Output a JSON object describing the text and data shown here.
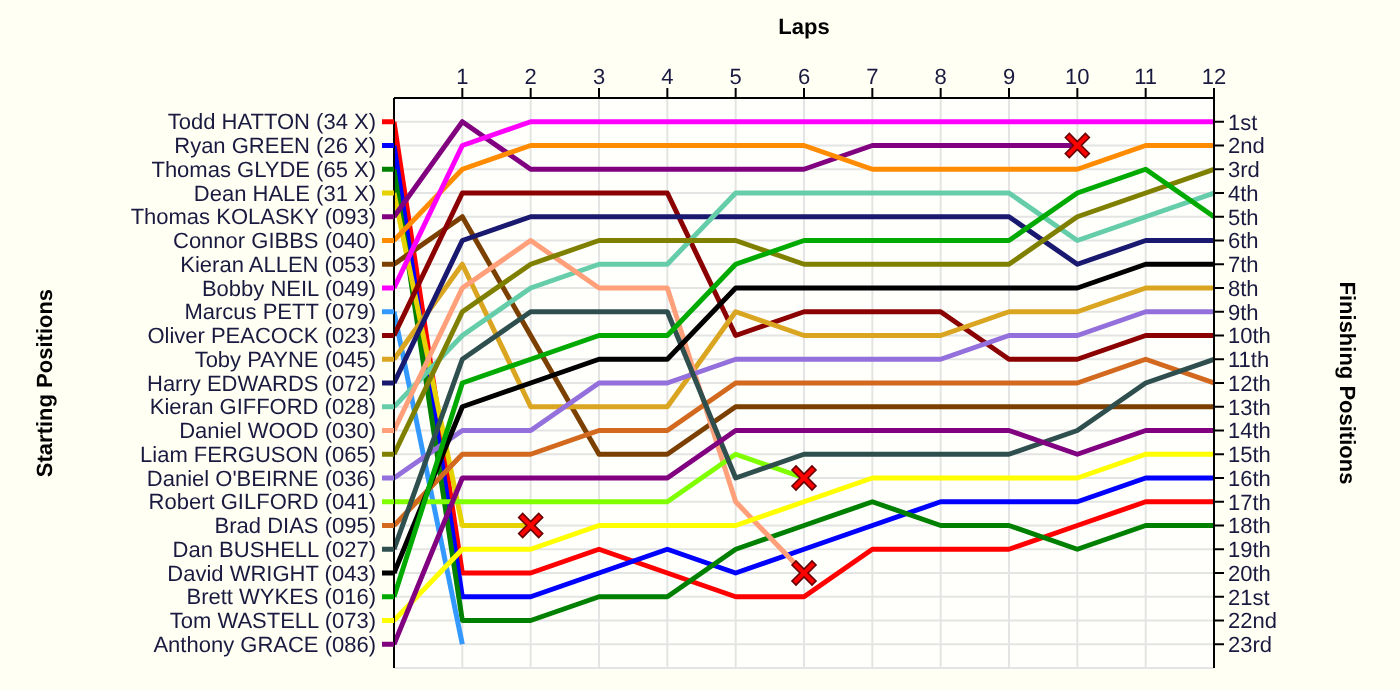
{
  "chart_data": {
    "type": "line",
    "xlabel": "Laps",
    "ylabel": "Finishing Positions",
    "legend_title": "Starting Positions",
    "x": [
      0,
      1,
      2,
      3,
      4,
      5,
      6,
      7,
      8,
      9,
      10,
      11,
      12
    ],
    "xlim": [
      0,
      12
    ],
    "xticks": [
      1,
      2,
      3,
      4,
      5,
      6,
      7,
      8,
      9,
      10,
      11,
      12
    ],
    "ylim": [
      24,
      0
    ],
    "yticks": [
      {
        "value": 1,
        "label": "1st"
      },
      {
        "value": 2,
        "label": "2nd"
      },
      {
        "value": 3,
        "label": "3rd"
      },
      {
        "value": 4,
        "label": "4th"
      },
      {
        "value": 5,
        "label": "5th"
      },
      {
        "value": 6,
        "label": "6th"
      },
      {
        "value": 7,
        "label": "7th"
      },
      {
        "value": 8,
        "label": "8th"
      },
      {
        "value": 9,
        "label": "9th"
      },
      {
        "value": 10,
        "label": "10th"
      },
      {
        "value": 11,
        "label": "11th"
      },
      {
        "value": 12,
        "label": "12th"
      },
      {
        "value": 13,
        "label": "13th"
      },
      {
        "value": 14,
        "label": "14th"
      },
      {
        "value": 15,
        "label": "15th"
      },
      {
        "value": 16,
        "label": "16th"
      },
      {
        "value": 17,
        "label": "17th"
      },
      {
        "value": 18,
        "label": "18th"
      },
      {
        "value": 19,
        "label": "19th"
      },
      {
        "value": 20,
        "label": "20th"
      },
      {
        "value": 21,
        "label": "21st"
      },
      {
        "value": 22,
        "label": "22nd"
      },
      {
        "value": 23,
        "label": "23rd"
      }
    ],
    "grid": true,
    "marker": "none",
    "legend": "left",
    "series": [
      {
        "name": "Todd HATTON (34 X)",
        "color": "#ff0000",
        "values": [
          1,
          20,
          20,
          19,
          20,
          21,
          21,
          19,
          19,
          19,
          18,
          17,
          17
        ]
      },
      {
        "name": "Ryan GREEN (26 X)",
        "color": "#0000ff",
        "values": [
          2,
          21,
          21,
          20,
          19,
          20,
          19,
          18,
          17,
          17,
          17,
          16,
          16
        ]
      },
      {
        "name": "Thomas GLYDE (65 X)",
        "color": "#008000",
        "values": [
          3,
          22,
          22,
          21,
          21,
          19,
          18,
          17,
          18,
          18,
          19,
          18,
          18
        ]
      },
      {
        "name": "Dean HALE (31 X)",
        "color": "#e6d200",
        "values": [
          4,
          18,
          18,
          null,
          null,
          null,
          null,
          null,
          null,
          null,
          null,
          null,
          null
        ]
      },
      {
        "name": "Thomas KOLASKY (093)",
        "color": "#800080",
        "values": [
          5,
          1,
          3,
          3,
          3,
          3,
          3,
          2,
          2,
          2,
          2,
          null,
          null
        ]
      },
      {
        "name": "Connor GIBBS (040)",
        "color": "#ff8c00",
        "values": [
          6,
          3,
          2,
          2,
          2,
          2,
          2,
          3,
          3,
          3,
          3,
          2,
          2
        ]
      },
      {
        "name": "Kieran ALLEN (053)",
        "color": "#7b3f00",
        "values": [
          7,
          5,
          10,
          15,
          15,
          13,
          13,
          13,
          13,
          13,
          13,
          13,
          13
        ]
      },
      {
        "name": "Bobby NEIL (049)",
        "color": "#ff00ff",
        "values": [
          8,
          2,
          1,
          1,
          1,
          1,
          1,
          1,
          1,
          1,
          1,
          1,
          1
        ]
      },
      {
        "name": "Marcus PETT (079)",
        "color": "#3399ff",
        "values": [
          9,
          23,
          null,
          null,
          null,
          null,
          null,
          null,
          null,
          null,
          null,
          null,
          null
        ]
      },
      {
        "name": "Oliver PEACOCK (023)",
        "color": "#8b0000",
        "values": [
          10,
          4,
          4,
          4,
          4,
          10,
          9,
          9,
          9,
          11,
          11,
          10,
          10
        ]
      },
      {
        "name": "Toby PAYNE (045)",
        "color": "#daa520",
        "values": [
          11,
          7,
          13,
          13,
          13,
          9,
          10,
          10,
          10,
          9,
          9,
          8,
          8
        ]
      },
      {
        "name": "Harry EDWARDS (072)",
        "color": "#191970",
        "values": [
          12,
          6,
          5,
          5,
          5,
          5,
          5,
          5,
          5,
          5,
          7,
          6,
          6
        ]
      },
      {
        "name": "Kieran GIFFORD (028)",
        "color": "#66cdaa",
        "values": [
          13,
          10,
          8,
          7,
          7,
          4,
          4,
          4,
          4,
          4,
          6,
          5,
          4
        ]
      },
      {
        "name": "Daniel WOOD (030)",
        "color": "#ffa07a",
        "values": [
          14,
          8,
          6,
          8,
          8,
          17,
          20,
          null,
          null,
          null,
          null,
          null,
          null
        ]
      },
      {
        "name": "Liam FERGUSON (065)",
        "color": "#808000",
        "values": [
          15,
          9,
          7,
          6,
          6,
          6,
          7,
          7,
          7,
          7,
          5,
          4,
          3
        ]
      },
      {
        "name": "Daniel O'BEIRNE (036)",
        "color": "#9370db",
        "values": [
          16,
          14,
          14,
          12,
          12,
          11,
          11,
          11,
          11,
          10,
          10,
          9,
          9
        ]
      },
      {
        "name": "Robert GILFORD (041)",
        "color": "#7fff00",
        "values": [
          17,
          17,
          17,
          17,
          17,
          15,
          16,
          null,
          null,
          null,
          null,
          null,
          null
        ]
      },
      {
        "name": "Brad DIAS (095)",
        "color": "#d2691e",
        "values": [
          18,
          15,
          15,
          14,
          14,
          12,
          12,
          12,
          12,
          12,
          12,
          11,
          12
        ]
      },
      {
        "name": "Dan BUSHELL (027)",
        "color": "#2f4f4f",
        "values": [
          19,
          11,
          9,
          9,
          9,
          16,
          15,
          15,
          15,
          15,
          14,
          12,
          11
        ]
      },
      {
        "name": "David WRIGHT (043)",
        "color": "#000000",
        "values": [
          20,
          13,
          12,
          11,
          11,
          8,
          8,
          8,
          8,
          8,
          8,
          7,
          7
        ]
      },
      {
        "name": "Brett WYKES (016)",
        "color": "#00aa00",
        "values": [
          21,
          12,
          11,
          10,
          10,
          7,
          6,
          6,
          6,
          6,
          4,
          3,
          5
        ]
      },
      {
        "name": "Tom WASTELL (073)",
        "color": "#ffff00",
        "values": [
          22,
          19,
          19,
          18,
          18,
          18,
          17,
          16,
          16,
          16,
          16,
          15,
          15
        ]
      },
      {
        "name": "Anthony GRACE (086)",
        "color": "#800080",
        "values": [
          23,
          16,
          16,
          16,
          16,
          14,
          14,
          14,
          14,
          14,
          15,
          14,
          14
        ]
      },
      {
        "type": "scatter",
        "marker": "cross",
        "color": "#ff0000",
        "x": [
          2,
          6,
          6,
          10
        ],
        "values": [
          18,
          16,
          20,
          2
        ]
      }
    ]
  }
}
